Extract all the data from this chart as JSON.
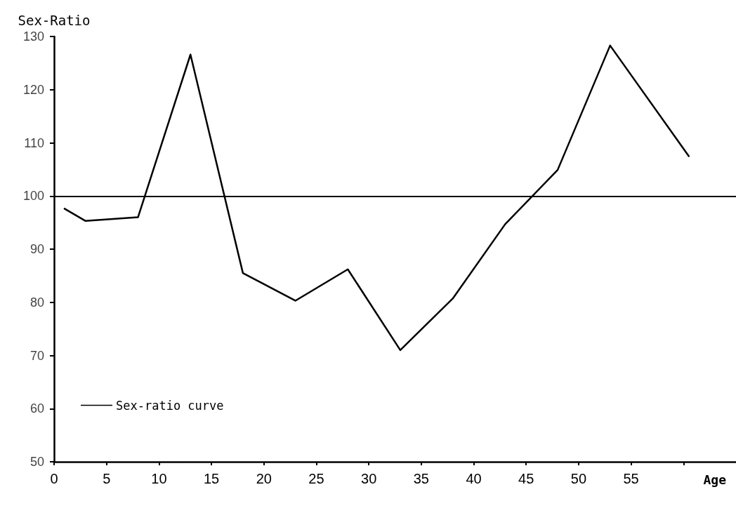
{
  "chart_data": {
    "type": "line",
    "ylabel": "Sex-Ratio",
    "xlabel": "Age",
    "x": [
      1,
      3,
      8,
      13,
      18,
      23,
      28,
      33,
      38,
      43,
      48,
      53,
      60.5
    ],
    "series": [
      {
        "name": "Sex-ratio curve",
        "color": "#000000",
        "values": [
          97.6,
          95.3,
          96,
          126.6,
          85.5,
          80.3,
          86.2,
          71,
          80.7,
          94.7,
          104.9,
          128.3,
          107.5
        ]
      }
    ],
    "xlim": [
      0,
      65
    ],
    "xticks": [
      0,
      5,
      10,
      15,
      20,
      25,
      30,
      35,
      40,
      45,
      50,
      55,
      {
        "value": 60,
        "label": null
      }
    ],
    "ylim": [
      50,
      130
    ],
    "yticks": [
      50,
      60,
      70,
      80,
      90,
      100,
      110,
      120,
      130
    ],
    "ref_lines": [
      {
        "axis": "y",
        "value": 100,
        "color": "#000000"
      }
    ],
    "legend": "bottom left",
    "marker": "none",
    "line_style": "solid",
    "grid": false
  }
}
